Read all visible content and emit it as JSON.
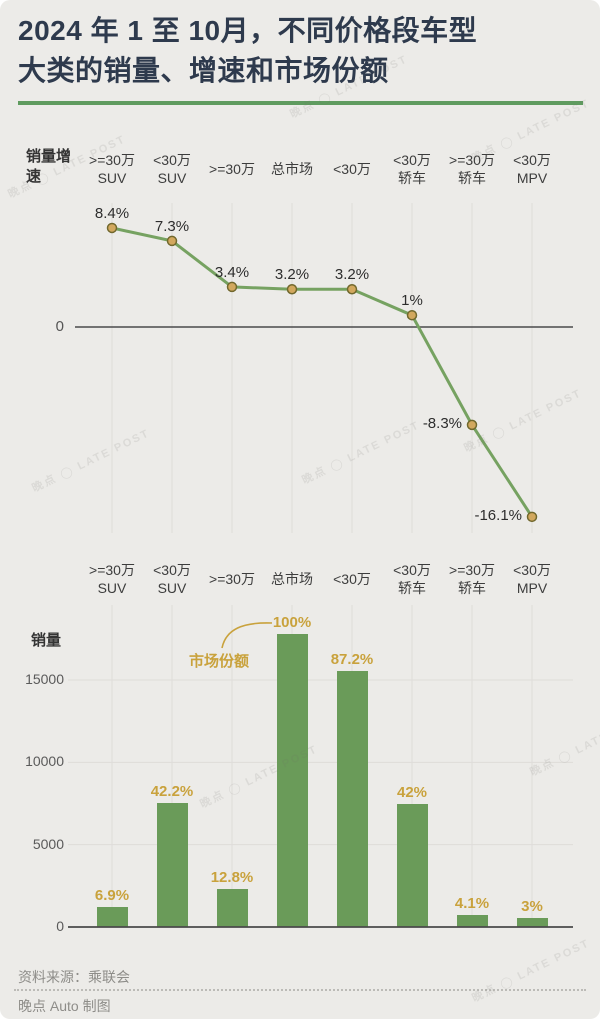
{
  "title": {
    "line1": "2024 年 1 至 10月，不同价格段车型",
    "line2": "大类的销量、增速和市场份额"
  },
  "colors": {
    "background": "#ecebe8",
    "title_text": "#2e3a4d",
    "green_rule": "#5f9b5f",
    "line_green": "#76a261",
    "bar_green": "#6a9b59",
    "marker_fill": "#d2a85e",
    "marker_stroke": "#71682d",
    "gold_label": "#c9a23c",
    "axis_dark": "#4a4a4a",
    "gridline": "#dedcd9"
  },
  "categories": [
    {
      "label": ">=30万 SUV",
      "lines": [
        ">=30万",
        "SUV"
      ]
    },
    {
      "label": "<30万 SUV",
      "lines": [
        "<30万",
        "SUV"
      ]
    },
    {
      "label": ">=30万",
      "lines": [
        ">=30万"
      ]
    },
    {
      "label": "总市场",
      "lines": [
        "总市场"
      ]
    },
    {
      "label": "<30万",
      "lines": [
        "<30万"
      ]
    },
    {
      "label": "<30万 轿车",
      "lines": [
        "<30万",
        "轿车"
      ]
    },
    {
      "label": ">=30万 轿车",
      "lines": [
        ">=30万",
        "轿车"
      ]
    },
    {
      "label": "<30万 MPV",
      "lines": [
        "<30万",
        "MPV"
      ]
    }
  ],
  "chart_data": [
    {
      "type": "line",
      "axis_label": "销量增速",
      "categories": [
        ">=30万 SUV",
        "<30万 SUV",
        ">=30万",
        "总市场",
        "<30万",
        "<30万 轿车",
        ">=30万 轿车",
        "<30万 MPV"
      ],
      "values": [
        8.4,
        7.3,
        3.4,
        3.2,
        3.2,
        1,
        -8.3,
        -16.1
      ],
      "labels": [
        "8.4%",
        "7.3%",
        "3.4%",
        "3.2%",
        "3.2%",
        "1%",
        "-8.3%",
        "-16.1%"
      ],
      "label_side": [
        "top",
        "top",
        "top",
        "top",
        "top",
        "top",
        "left",
        "left"
      ],
      "zero_label": "0",
      "ylim": [
        -18,
        10
      ],
      "grid": "vertical-only",
      "unit": "percent"
    },
    {
      "type": "bar",
      "ylabel": "销量",
      "categories": [
        ">=30万 SUV",
        "<30万 SUV",
        ">=30万",
        "总市场",
        "<30万",
        "<30万 轿车",
        ">=30万 轿车",
        "<30万 MPV"
      ],
      "values": [
        1230,
        7510,
        2280,
        17800,
        15520,
        7480,
        730,
        535
      ],
      "share_labels": [
        "6.9%",
        "42.2%",
        "12.8%",
        "100%",
        "87.2%",
        "42%",
        "4.1%",
        "3%"
      ],
      "yticks": [
        0,
        5000,
        10000,
        15000
      ],
      "ylim": [
        0,
        19500
      ],
      "annotation": "市场份额",
      "annotation_target": "100%",
      "grid": "both"
    }
  ],
  "footer": {
    "source": "资料来源：乘联会",
    "credit": "晚点 Auto 制图"
  },
  "watermark": "晚点 ◯ LATE POST"
}
